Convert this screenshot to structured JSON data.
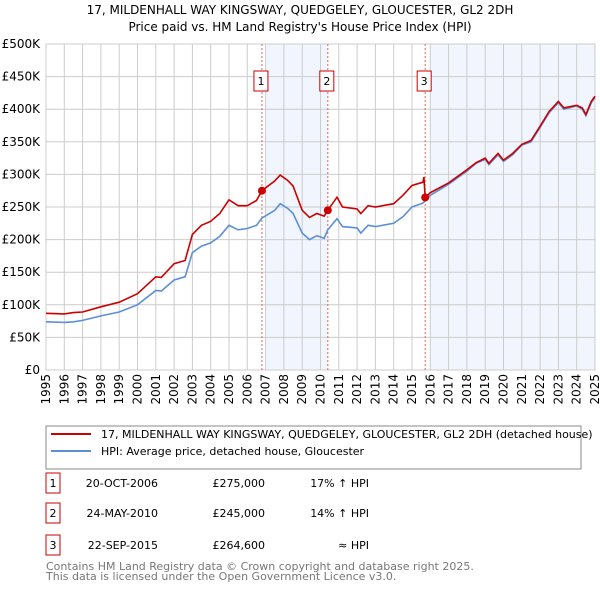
{
  "chart_data": {
    "type": "line",
    "title": "17, MILDENHALL WAY KINGSWAY, QUEDGELEY, GLOUCESTER, GL2 2DH",
    "subtitle": "Price paid vs. HM Land Registry's House Price Index (HPI)",
    "xlim": [
      1995,
      2025
    ],
    "ylim": [
      0,
      500000
    ],
    "yticks": [
      0,
      50000,
      100000,
      150000,
      200000,
      250000,
      300000,
      350000,
      400000,
      450000,
      500000
    ],
    "ytick_labels": [
      "£0",
      "£50K",
      "£100K",
      "£150K",
      "£200K",
      "£250K",
      "£300K",
      "£350K",
      "£400K",
      "£450K",
      "£500K"
    ],
    "xticks": [
      "1995",
      "1996",
      "1997",
      "1998",
      "1999",
      "2000",
      "2001",
      "2002",
      "2003",
      "2004",
      "2005",
      "2006",
      "2007",
      "2008",
      "2009",
      "2010",
      "2011",
      "2012",
      "2013",
      "2014",
      "2015",
      "2016",
      "2017",
      "2018",
      "2019",
      "2020",
      "2021",
      "2022",
      "2023",
      "2024",
      "2025"
    ],
    "grid": true,
    "shaded_ranges": [
      [
        2007.0,
        2010.4
      ],
      [
        2016.0,
        2025.0
      ]
    ],
    "series": [
      {
        "name": "17, MILDENHALL WAY KINGSWAY, QUEDGELEY, GLOUCESTER, GL2 2DH (detached house)",
        "color": "#cc0000",
        "x": [
          1995,
          1996,
          1996.5,
          1997,
          1998,
          1999,
          2000,
          2001,
          2001.3,
          2002,
          2002.6,
          2003,
          2003.5,
          2004,
          2004.5,
          2005,
          2005.5,
          2006,
          2006.5,
          2006.8,
          2007.5,
          2007.8,
          2008.2,
          2008.5,
          2009,
          2009.4,
          2009.8,
          2010.2,
          2010.4,
          2010.9,
          2011.2,
          2012,
          2012.2,
          2012.6,
          2013,
          2014,
          2014.5,
          2015,
          2015.6,
          2015.65,
          2015.72,
          2016,
          2017,
          2018,
          2018.5,
          2019,
          2019.2,
          2019.7,
          2020,
          2020.5,
          2021,
          2021.5,
          2022,
          2022.5,
          2023,
          2023.3,
          2024,
          2024.3,
          2024.5,
          2024.8,
          2025
        ],
        "y": [
          87000,
          86000,
          88000,
          89000,
          97000,
          104000,
          117000,
          143000,
          142000,
          163000,
          168000,
          208000,
          222000,
          228000,
          240000,
          261000,
          252000,
          252000,
          260000,
          275000,
          290000,
          299000,
          291000,
          282000,
          245000,
          234000,
          240000,
          236000,
          245000,
          265000,
          250000,
          247000,
          240000,
          252000,
          250000,
          255000,
          268000,
          283000,
          288000,
          296000,
          264600,
          272000,
          287000,
          307000,
          318000,
          325000,
          317000,
          332000,
          322000,
          332000,
          346000,
          352000,
          374000,
          397000,
          412000,
          402000,
          406000,
          402000,
          392000,
          412000,
          420000
        ]
      },
      {
        "name": "HPI: Average price, detached house, Gloucester",
        "color": "#5b8fd6",
        "x": [
          1995,
          1996,
          1996.5,
          1997,
          1998,
          1999,
          2000,
          2001,
          2001.3,
          2002,
          2002.6,
          2003,
          2003.5,
          2004,
          2004.5,
          2005,
          2005.5,
          2006,
          2006.5,
          2006.8,
          2007.5,
          2007.8,
          2008.2,
          2008.5,
          2009,
          2009.4,
          2009.8,
          2010.2,
          2010.4,
          2010.9,
          2011.2,
          2012,
          2012.2,
          2012.6,
          2013,
          2014,
          2014.5,
          2015,
          2015.6,
          2016,
          2017,
          2018,
          2018.5,
          2019,
          2019.2,
          2019.7,
          2020,
          2020.5,
          2021,
          2021.5,
          2022,
          2022.5,
          2023,
          2023.3,
          2024,
          2024.3,
          2024.5,
          2024.8,
          2025
        ],
        "y": [
          74000,
          73000,
          74000,
          76000,
          83000,
          89000,
          100000,
          122000,
          121000,
          138000,
          143000,
          180000,
          190000,
          195000,
          205000,
          222000,
          215000,
          217000,
          222000,
          233000,
          245000,
          255000,
          248000,
          240000,
          210000,
          200000,
          206000,
          202000,
          215000,
          232000,
          220000,
          218000,
          210000,
          222000,
          220000,
          225000,
          235000,
          250000,
          256000,
          268000,
          285000,
          305000,
          317000,
          323000,
          315000,
          330000,
          320000,
          330000,
          345000,
          350000,
          372000,
          395000,
          410000,
          400000,
          405000,
          400000,
          390000,
          410000,
          418000
        ]
      }
    ],
    "sales": [
      {
        "label": "1",
        "x": 2006.8,
        "y": 275000,
        "date": "20-OCT-2006",
        "price": "£275,000",
        "hpi": "17% ↑ HPI"
      },
      {
        "label": "2",
        "x": 2010.4,
        "y": 245000,
        "date": "24-MAY-2010",
        "price": "£245,000",
        "hpi": "14% ↑ HPI"
      },
      {
        "label": "3",
        "x": 2015.72,
        "y": 264600,
        "date": "22-SEP-2015",
        "price": "£264,600",
        "hpi": "≈ HPI"
      }
    ]
  },
  "footer": {
    "line1": "Contains HM Land Registry data © Crown copyright and database right 2025.",
    "line2": "This data is licensed under the Open Government Licence v3.0."
  }
}
